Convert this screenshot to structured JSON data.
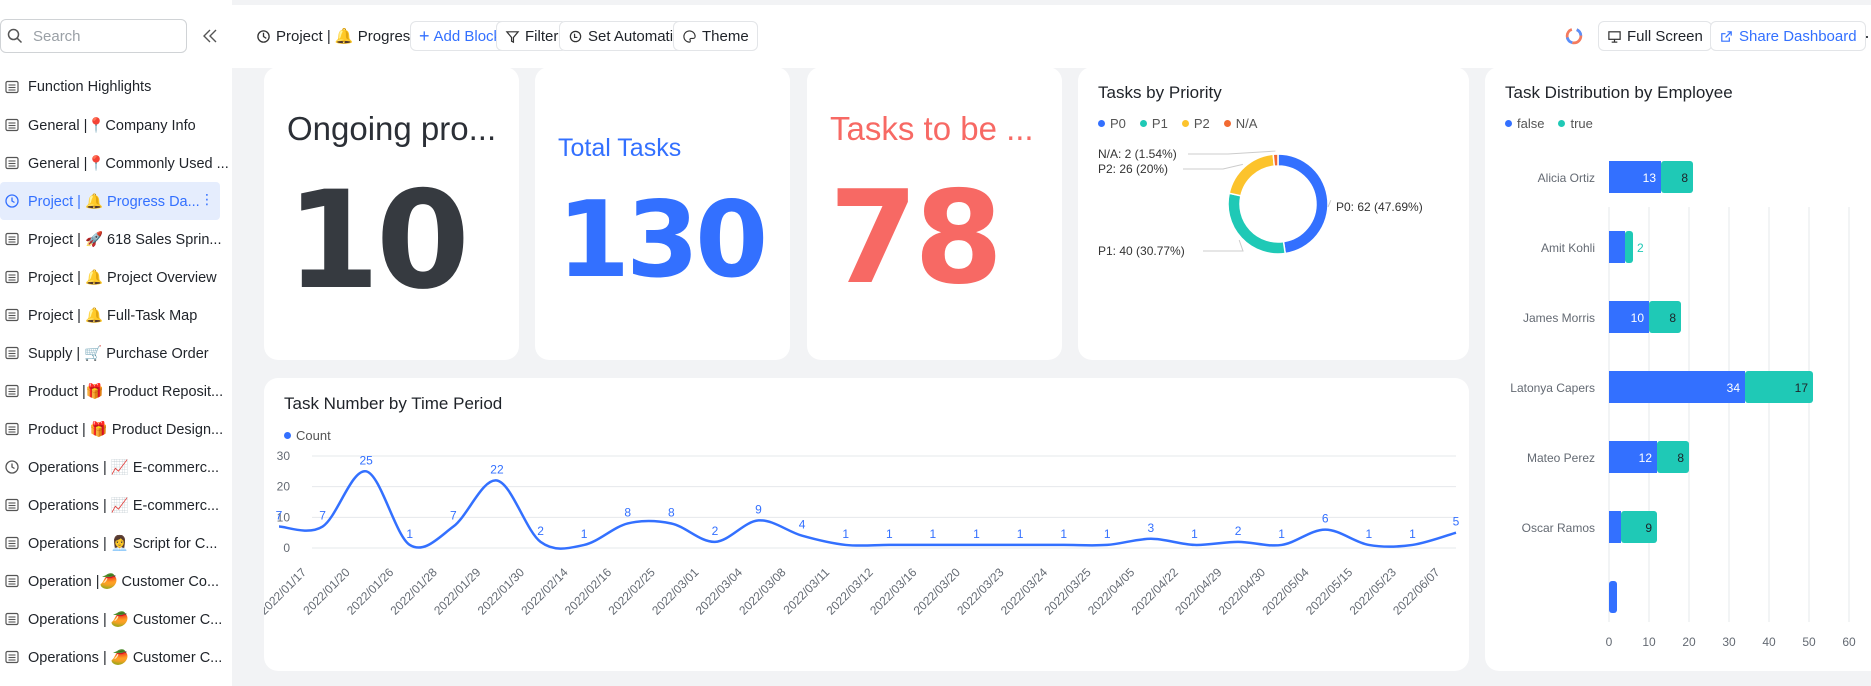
{
  "sidebar": {
    "search_placeholder": "Search",
    "items": [
      {
        "label": "Function Highlights",
        "icon": "table-icon"
      },
      {
        "label": "General |📍Company Info",
        "icon": "table-icon"
      },
      {
        "label": "General |📍Commonly Used ...",
        "icon": "table-icon"
      },
      {
        "label": "Project | 🔔 Progress Da...",
        "icon": "dashboard-icon",
        "active": true
      },
      {
        "label": "Project | 🚀 618 Sales Sprin...",
        "icon": "table-icon"
      },
      {
        "label": "Project | 🔔 Project Overview",
        "icon": "table-icon"
      },
      {
        "label": "Project | 🔔 Full-Task Map",
        "icon": "table-icon"
      },
      {
        "label": "Supply | 🛒 Purchase Order",
        "icon": "table-icon"
      },
      {
        "label": "Product |🎁 Product Reposit...",
        "icon": "table-icon"
      },
      {
        "label": "Product | 🎁 Product Design...",
        "icon": "table-icon"
      },
      {
        "label": "Operations | 📈 E-commerc...",
        "icon": "dashboard-icon"
      },
      {
        "label": "Operations | 📈 E-commerc...",
        "icon": "table-icon"
      },
      {
        "label": "Operations | 👩‍💼 Script for C...",
        "icon": "table-icon"
      },
      {
        "label": "Operation |🥭 Customer Co...",
        "icon": "table-icon"
      },
      {
        "label": "Operations | 🥭 Customer C...",
        "icon": "table-icon"
      },
      {
        "label": "Operations | 🥭 Customer C...",
        "icon": "table-icon"
      }
    ]
  },
  "toolbar": {
    "title": "Project | 🔔 Progress Dashb...",
    "add_block": "Add Block",
    "filter": "Filter",
    "set_automation": "Set Automation",
    "theme": "Theme",
    "full_screen": "Full Screen",
    "share_dashboard": "Share Dashboard"
  },
  "cards": {
    "ongoing": {
      "title": "Ongoing pro...",
      "value": "10",
      "color": "#363a40"
    },
    "total": {
      "title": "Total Tasks",
      "value": "130",
      "color": "#3370ff"
    },
    "todo": {
      "title": "Tasks to be ...",
      "value": "78",
      "color": "#f76964"
    }
  },
  "colors": {
    "p0": "#3370ff",
    "p1": "#1fc9b6",
    "p2": "#fcc32c",
    "na": "#f26a32"
  },
  "chart_data": [
    {
      "type": "pie",
      "title": "Tasks by Priority",
      "legend": [
        "P0",
        "P1",
        "P2",
        "N/A"
      ],
      "slices": [
        {
          "name": "P0",
          "value": 62,
          "label": "P0: 62 (47.69%)"
        },
        {
          "name": "P1",
          "value": 40,
          "label": "P1: 40 (30.77%)"
        },
        {
          "name": "P2",
          "value": 26,
          "label": "P2: 26 (20%)"
        },
        {
          "name": "N/A",
          "value": 2,
          "label": "N/A: 2 (1.54%)"
        }
      ]
    },
    {
      "type": "line",
      "title": "Task Number by Time Period",
      "legend": [
        "Count"
      ],
      "ylim": [
        0,
        30
      ],
      "yticks": [
        0,
        10,
        20,
        30
      ],
      "x": [
        "2022/01/17",
        "2022/01/20",
        "2022/01/26",
        "2022/01/28",
        "2022/01/29",
        "2022/01/30",
        "2022/02/14",
        "2022/02/16",
        "2022/02/25",
        "2022/03/01",
        "2022/03/04",
        "2022/03/08",
        "2022/03/11",
        "2022/03/12",
        "2022/03/16",
        "2022/03/20",
        "2022/03/23",
        "2022/03/24",
        "2022/03/25",
        "2022/04/05",
        "2022/04/22",
        "2022/04/29",
        "2022/04/30",
        "2022/05/04",
        "2022/05/15",
        "2022/05/23",
        "2022/06/07",
        ""
      ],
      "series": [
        {
          "name": "Count",
          "values": [
            7,
            7,
            25,
            1,
            7,
            22,
            2,
            1,
            8,
            8,
            2,
            9,
            4,
            1,
            1,
            1,
            1,
            1,
            1,
            1,
            3,
            1,
            2,
            1,
            6,
            1,
            1,
            5
          ]
        }
      ]
    },
    {
      "type": "bar",
      "title": "Task Distribution by Employee",
      "legend": [
        "false",
        "true"
      ],
      "categories": [
        "Alicia Ortiz",
        "Amit Kohli",
        "James Morris",
        "Latonya Capers",
        "Mateo Perez",
        "Oscar Ramos",
        ""
      ],
      "xlim": [
        0,
        60
      ],
      "xticks": [
        0,
        10,
        20,
        30,
        40,
        50,
        60
      ],
      "series": [
        {
          "name": "false",
          "values": [
            13,
            4,
            10,
            34,
            12,
            3,
            2
          ]
        },
        {
          "name": "true",
          "values": [
            8,
            2,
            8,
            17,
            8,
            9,
            0
          ]
        }
      ]
    }
  ]
}
